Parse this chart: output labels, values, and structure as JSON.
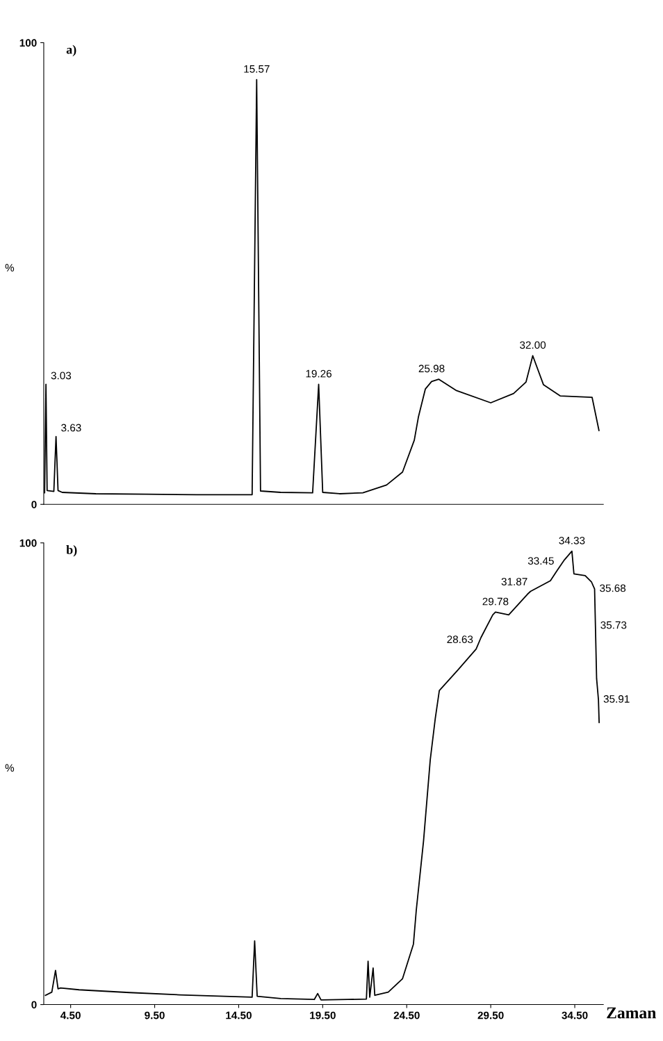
{
  "chart_data": [
    {
      "type": "line",
      "title": "a)",
      "ylabel": "%",
      "xlim": [
        2.9,
        36.2
      ],
      "ylim": [
        0,
        100
      ],
      "yticks": [
        0,
        100
      ],
      "tick_labels": "y",
      "grid": false,
      "legend": false,
      "series": [
        {
          "color": "#000000",
          "x": [
            2.95,
            3.03,
            3.1,
            3.5,
            3.63,
            3.75,
            4.0,
            6.0,
            9.0,
            12.0,
            15.3,
            15.57,
            15.8,
            17.0,
            18.9,
            19.26,
            19.5,
            20.5,
            21.89,
            23.3,
            24.25,
            24.95,
            25.2,
            25.61,
            25.98,
            26.4,
            27.43,
            29.5,
            30.86,
            31.6,
            32.0,
            32.64,
            33.63,
            35.53,
            35.94
          ],
          "values": [
            2.5,
            26,
            3.0,
            2.8,
            14.7,
            3.0,
            2.6,
            2.3,
            2.2,
            2.1,
            2.1,
            92,
            2.9,
            2.6,
            2.5,
            26,
            2.6,
            2.3,
            2.5,
            4.2,
            7.0,
            13.9,
            19.0,
            25.0,
            26.6,
            27.1,
            24.7,
            22.0,
            24.0,
            26.5,
            32.2,
            25.9,
            23.5,
            23.2,
            16.0
          ]
        }
      ],
      "annotations": [
        {
          "text": "3.03",
          "x": 3.03,
          "y": 26
        },
        {
          "text": "3.63",
          "x": 3.63,
          "y": 14.7
        },
        {
          "text": "15.57",
          "x": 15.57,
          "y": 92
        },
        {
          "text": "19.26",
          "x": 19.26,
          "y": 26
        },
        {
          "text": "25.98",
          "x": 25.98,
          "y": 27.1
        },
        {
          "text": "32.00",
          "x": 32.0,
          "y": 32.2
        }
      ]
    },
    {
      "type": "line",
      "title": "b)",
      "ylabel": "%",
      "xlabel": "Zaman",
      "xlim": [
        2.9,
        36.2
      ],
      "ylim": [
        0,
        100
      ],
      "yticks": [
        0,
        100
      ],
      "xticks": [
        {
          "value": 4.5,
          "label": "4.50"
        },
        {
          "value": 9.5,
          "label": "9.50"
        },
        {
          "value": 14.5,
          "label": "14.50"
        },
        {
          "value": 19.5,
          "label": "19.50"
        },
        {
          "value": 24.5,
          "label": "24.50"
        },
        {
          "value": 29.5,
          "label": "29.50"
        },
        {
          "value": 34.5,
          "label": "34.50"
        }
      ],
      "grid": false,
      "legend": false,
      "series": [
        {
          "color": "#000000",
          "x": [
            3.0,
            3.38,
            3.6,
            3.75,
            3.9,
            5.0,
            8.0,
            11.0,
            15.3,
            15.45,
            15.6,
            17.0,
            19.0,
            19.2,
            19.4,
            21.0,
            22.1,
            22.2,
            22.3,
            22.5,
            22.6,
            23.4,
            24.25,
            24.9,
            25.07,
            25.5,
            25.9,
            26.2,
            26.44,
            27.55,
            28.63,
            28.92,
            29.62,
            29.78,
            30.57,
            31.69,
            31.87,
            33.05,
            33.45,
            33.88,
            34.33,
            34.45,
            35.12,
            35.5,
            35.68,
            35.73,
            35.8,
            35.91,
            35.95
          ],
          "values": [
            2.0,
            2.7,
            7.4,
            3.4,
            3.6,
            3.2,
            2.6,
            2.1,
            1.6,
            13.8,
            1.8,
            1.3,
            1.1,
            2.4,
            1.0,
            1.1,
            1.2,
            9.4,
            1.6,
            7.9,
            2.0,
            2.7,
            5.6,
            13.1,
            20.5,
            35.4,
            53,
            62,
            68.0,
            72.5,
            77,
            79.5,
            84.4,
            85,
            84.4,
            88.9,
            89.5,
            91.8,
            94,
            96.3,
            98.2,
            93.3,
            92.9,
            91.5,
            90,
            82,
            70.6,
            66,
            61.1
          ]
        }
      ],
      "annotations": [
        {
          "text": "28.63",
          "x": 28.63,
          "y": 77
        },
        {
          "text": "29.78",
          "x": 29.78,
          "y": 85
        },
        {
          "text": "31.87",
          "x": 31.87,
          "y": 89.5
        },
        {
          "text": "33.45",
          "x": 33.45,
          "y": 94
        },
        {
          "text": "34.33",
          "x": 34.33,
          "y": 98.2
        },
        {
          "text": "35.68",
          "x": 35.68,
          "y": 90
        },
        {
          "text": "35.73",
          "x": 35.73,
          "y": 82
        },
        {
          "text": "35.91",
          "x": 35.91,
          "y": 66
        }
      ]
    }
  ]
}
